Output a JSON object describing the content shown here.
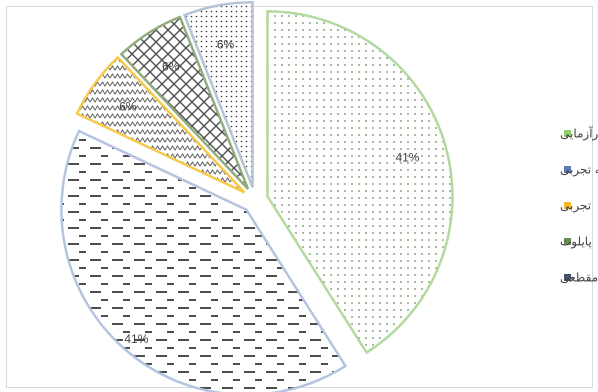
{
  "chart_data": {
    "type": "pie",
    "title": "",
    "legend_position": "right",
    "slices": [
      {
        "label": "کارآزمایی",
        "value": 41,
        "display": "41%",
        "pattern": "dots",
        "color": "#8ecf6e",
        "stroke": "#b2da9f"
      },
      {
        "label": "نیمه تجربی",
        "value": 41,
        "display": "41%",
        "pattern": "dashes",
        "color": "#5a7ab6",
        "stroke": "#b4c4e0"
      },
      {
        "label": "تجربی",
        "value": 6,
        "display": "6%",
        "pattern": "zigzag",
        "color": "#f2b92a",
        "stroke": "#f6c94d"
      },
      {
        "label": "پایلوت",
        "value": 6,
        "display": "6%",
        "pattern": "chain",
        "color": "#6b8f55",
        "stroke": "#91ad7f"
      },
      {
        "label": "مقطعی",
        "value": 6,
        "display": "6%",
        "pattern": "dots-dense",
        "color": "#44546a",
        "stroke": "#b6c3d6"
      }
    ]
  }
}
